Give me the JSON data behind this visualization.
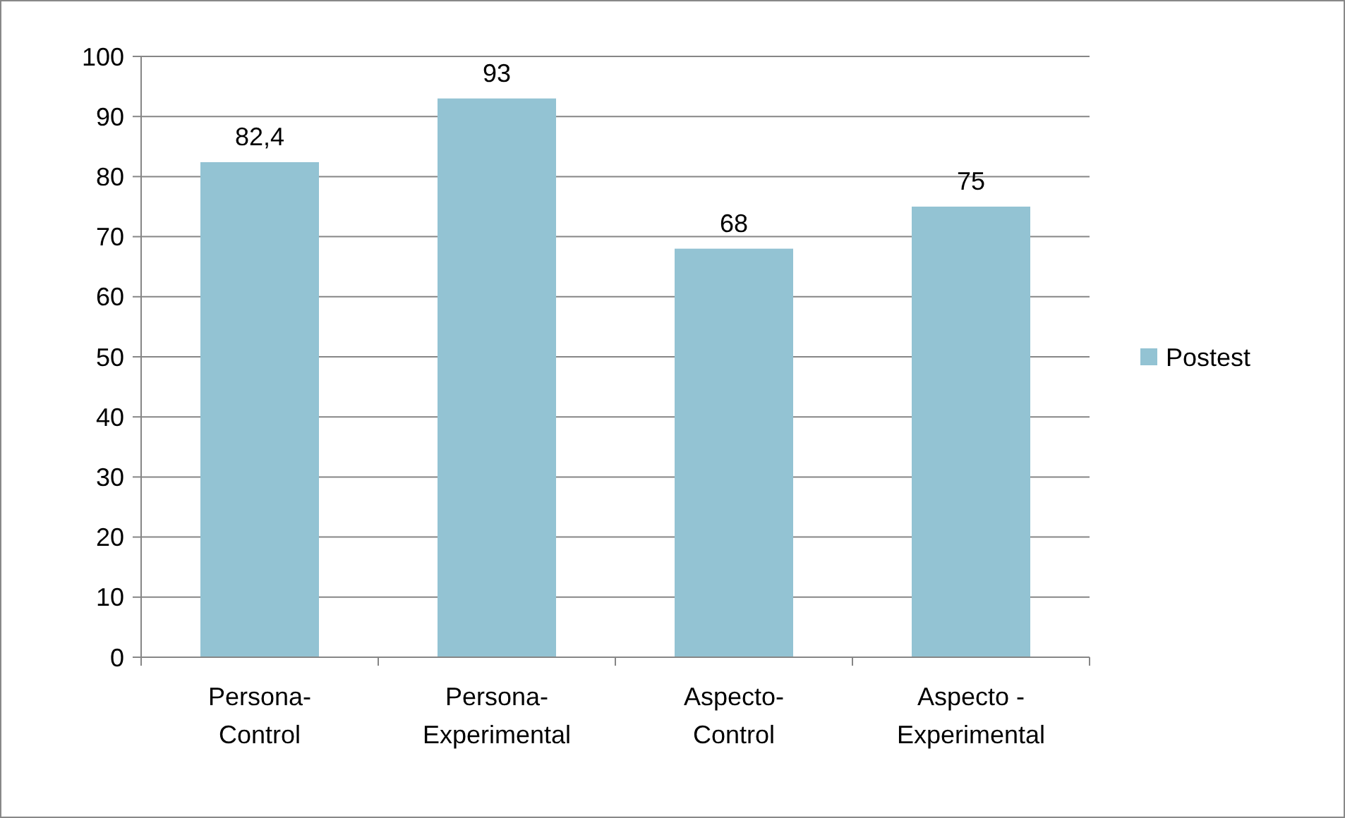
{
  "chart_data": {
    "type": "bar",
    "categories": [
      "Persona-Control",
      "Persona-Experimental",
      "Aspecto-Control",
      "Aspecto - Experimental"
    ],
    "series": [
      {
        "name": "Postest",
        "color": "#93c3d3",
        "values": [
          82.4,
          93,
          68,
          75
        ],
        "value_labels": [
          "82,4",
          "93",
          "68",
          "75"
        ]
      }
    ],
    "ylim": [
      0,
      100
    ],
    "yticks": [
      0,
      10,
      20,
      30,
      40,
      50,
      60,
      70,
      80,
      90,
      100
    ],
    "grid": "y",
    "legend": "right"
  }
}
